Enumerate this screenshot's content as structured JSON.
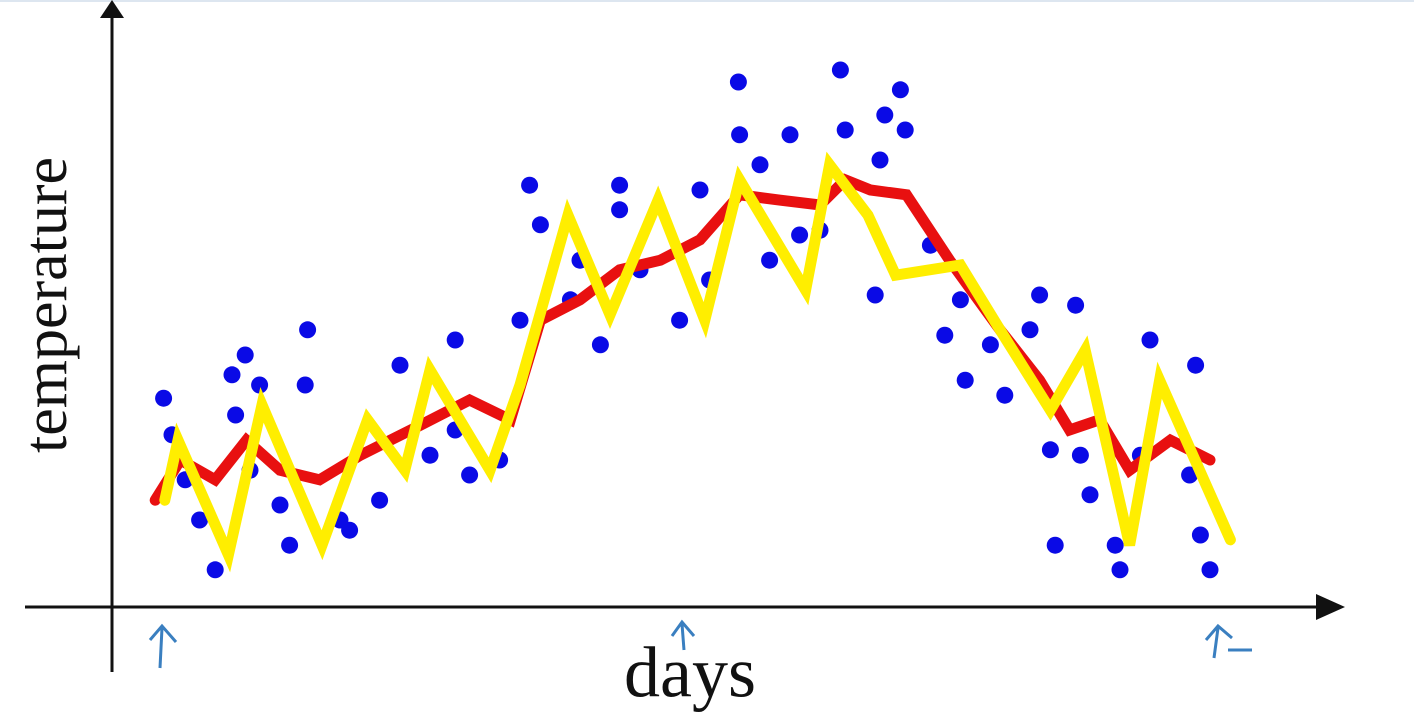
{
  "chart_data": {
    "type": "scatter",
    "x_label": "days",
    "y_label": "temperature",
    "xlim": [
      0,
      100
    ],
    "ylim": [
      0,
      100
    ],
    "series": [
      {
        "type": "scatter",
        "color": "#0a0ae6",
        "x": [
          4.3,
          5,
          8.6,
          11.1,
          10,
          12.3,
          10.3,
          14.8,
          16.3,
          16.1,
          19.8,
          22.3,
          24,
          28.6,
          26.5,
          29.8,
          32.3,
          34,
          34.8,
          35.7,
          38.2,
          40.7,
          42.3,
          44,
          47.3,
          49,
          49.8,
          52.2,
          52.3,
          54.8,
          56.5,
          57.3,
          60.7,
          61.1,
          64,
          64.4,
          65.7,
          66.1,
          63.6,
          68.2,
          69.4,
          71.1,
          74.4,
          76.5,
          77.3,
          78.6,
          80.3,
          80.7,
          81.5,
          83.6,
          84,
          86.5,
          85.7,
          90.3,
          90.7,
          91.5,
          89.8,
          78.2,
          73.2,
          70.7,
          54,
          59,
          39,
          28.6,
          19,
          14,
          7.3,
          11.5,
          6.1,
          42.3
        ],
        "values": [
          34.8,
          28.7,
          6.2,
          42,
          38.7,
          37,
          32,
          10.3,
          46.2,
          37,
          12.8,
          17.8,
          40.3,
          44.5,
          25.3,
          22,
          24.5,
          47.8,
          70.3,
          63.7,
          51.2,
          43.7,
          70.3,
          56.2,
          47.8,
          69.5,
          54.5,
          87.5,
          78.7,
          57.8,
          78.7,
          62,
          89.5,
          79.5,
          74.5,
          82,
          86.2,
          79.5,
          52,
          60.3,
          45.3,
          37.8,
          35.3,
          46.2,
          52,
          10.3,
          50.3,
          25.3,
          18.7,
          10.3,
          6.2,
          44.5,
          25.3,
          40.3,
          12,
          6.2,
          22,
          26.2,
          43.7,
          51.2,
          73.7,
          62.8,
          57.8,
          29.5,
          14.5,
          17,
          14.5,
          22.8,
          21.2,
          66.2
        ]
      },
      {
        "type": "line",
        "color": "#e81010",
        "x": [
          3.6,
          5.7,
          8.6,
          11.2,
          14,
          17.3,
          20.7,
          25.7,
          29.8,
          33.2,
          35.7,
          39,
          42.3,
          45.7,
          49,
          52.3,
          55.7,
          59,
          61.1,
          63.2,
          66.2,
          69.8,
          74,
          77.3,
          79.8,
          82.3,
          84.8,
          88.2,
          91.5
        ],
        "values": [
          17.8,
          24.5,
          21.2,
          27.8,
          22.8,
          21.2,
          25.3,
          30.3,
          34.5,
          31.2,
          47.8,
          51.2,
          56.2,
          57.8,
          61.2,
          68.7,
          67.8,
          67,
          71.2,
          69.5,
          68.7,
          57.8,
          46.2,
          37.8,
          29.5,
          31.2,
          22.8,
          27.8,
          24.5
        ]
      },
      {
        "type": "line",
        "color": "#ffee00",
        "x": [
          4.4,
          5.5,
          9.7,
          12.5,
          17.5,
          21.3,
          24.4,
          26.5,
          31.5,
          34,
          38,
          41.5,
          45.5,
          49.4,
          52.3,
          57.8,
          59.8,
          63,
          65.3,
          70.7,
          74,
          78.2,
          81.1,
          84.8,
          87.3,
          93.2
        ],
        "values": [
          17.8,
          27.8,
          8.7,
          33.7,
          10.3,
          31.2,
          22.8,
          39.5,
          22.8,
          37,
          65.3,
          48.7,
          67.8,
          47.8,
          71.2,
          52.8,
          73.7,
          65.3,
          55.3,
          57,
          46.2,
          32.8,
          42.8,
          10.3,
          37.8,
          11.2
        ]
      }
    ]
  }
}
